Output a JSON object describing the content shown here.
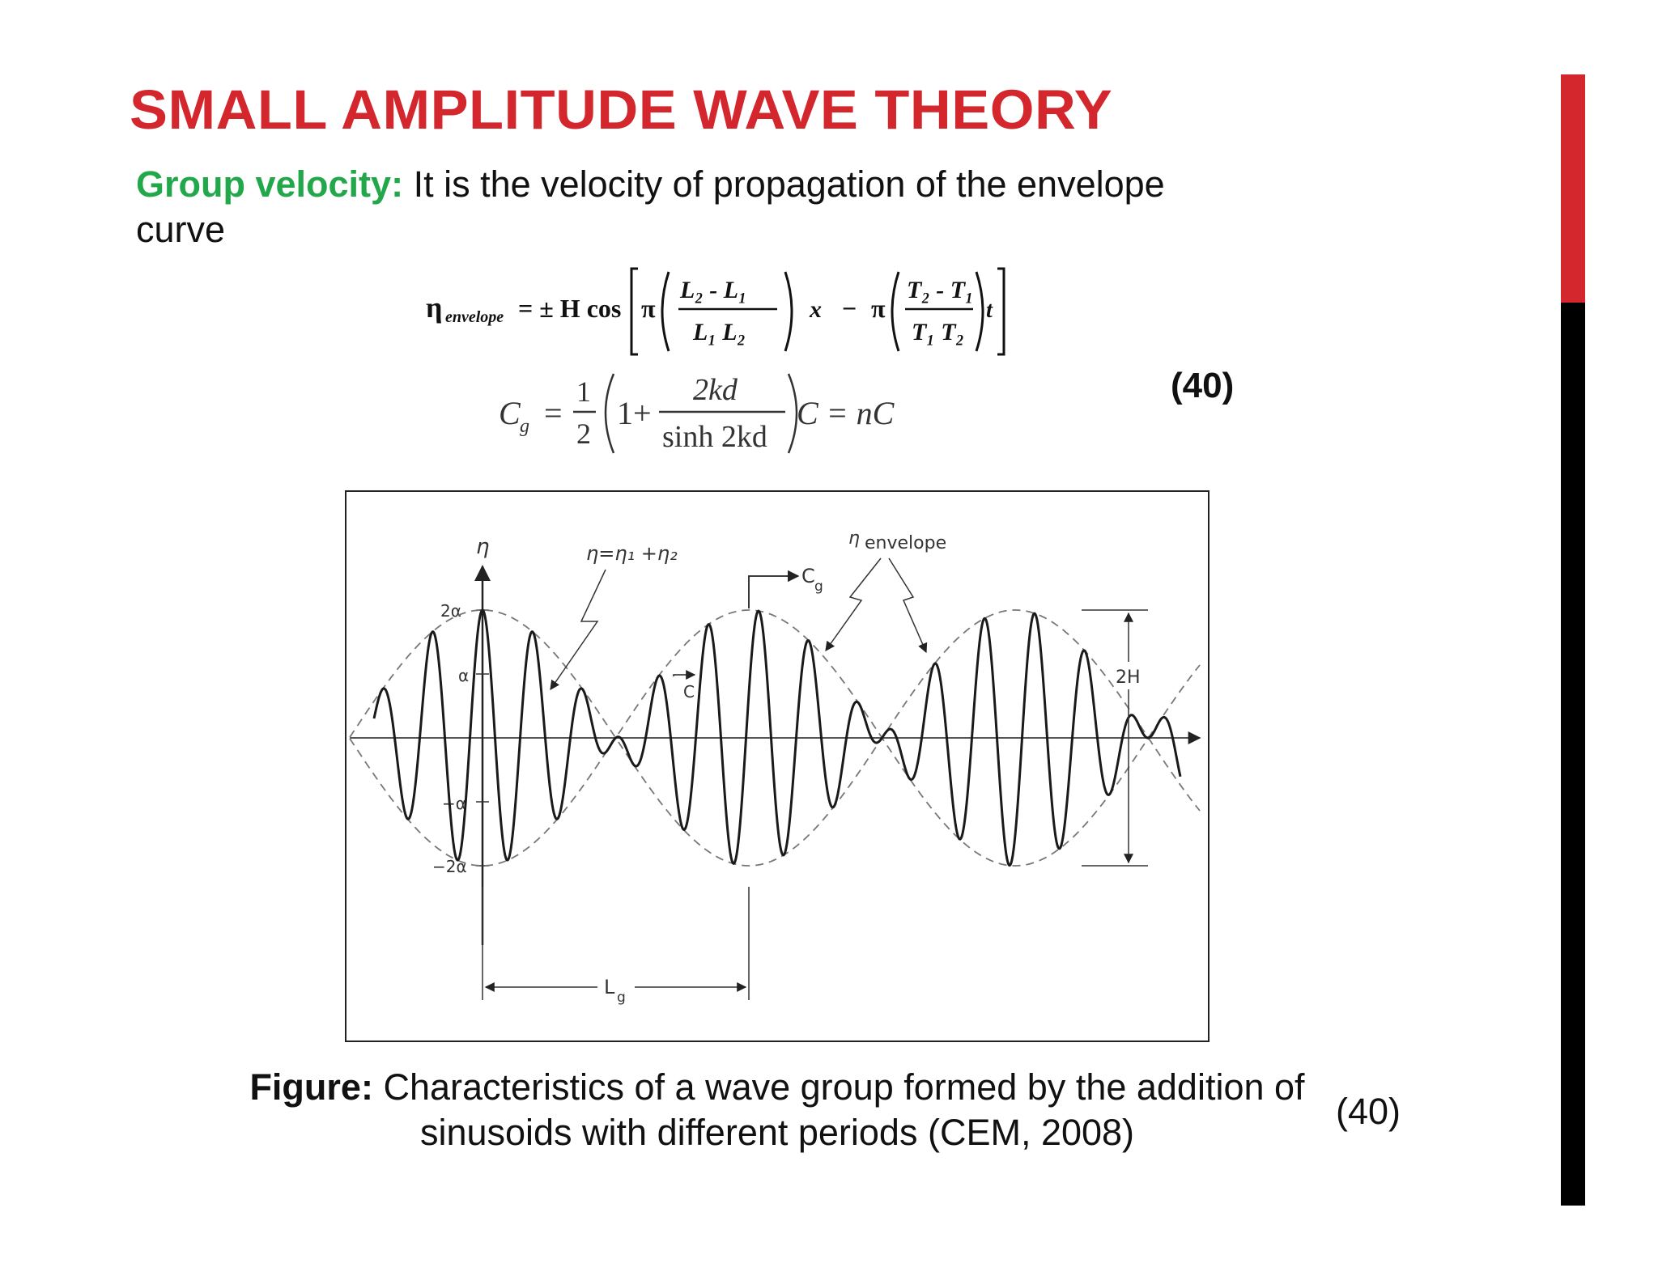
{
  "slide": {
    "title": "SMALL AMPLITUDE WAVE THEORY",
    "accent_red": "#d3262d",
    "accent_green": "#22a84a"
  },
  "intro": {
    "term": "Group velocity:",
    "text": " It is the velocity of propagation of the envelope curve"
  },
  "equation_envelope": {
    "lhs": "η",
    "lhs_sub": "envelope",
    "rhs_start": "= ± H cos",
    "pi": "π",
    "frac1_num": "L₂ - L₁",
    "frac1_den": "L₁ L₂",
    "x": "x",
    "minus": "−",
    "frac2_num": "T₂ - T₁",
    "frac2_den": "T₁ T₂",
    "t": "t"
  },
  "equation_group_velocity": {
    "lhs": "C",
    "lhs_sub": "g",
    "eq": "=",
    "half_num": "1",
    "half_den": "2",
    "one_plus": "1+",
    "frac_num": "2kd",
    "frac_den": "sinh 2kd",
    "rhs": "C = nC"
  },
  "equation_number": "(40)",
  "figure": {
    "labels": {
      "eta_axis": "η",
      "eta_sum": "η=η₁ +η₂",
      "eta_env": "η",
      "envelope": "envelope",
      "cg": "C",
      "cg_sub": "g",
      "c": "C",
      "two_h": "2H",
      "lg": "L",
      "lg_sub": "g",
      "tick_2a": "2α",
      "tick_a": "α",
      "tick_neg_a": "−α",
      "tick_neg_2a": "−2α"
    }
  },
  "caption": {
    "label": "Figure:",
    "text": " Characteristics of a wave group formed by the addition of sinusoids with different periods (CEM, 2008)",
    "number": "(40)"
  }
}
